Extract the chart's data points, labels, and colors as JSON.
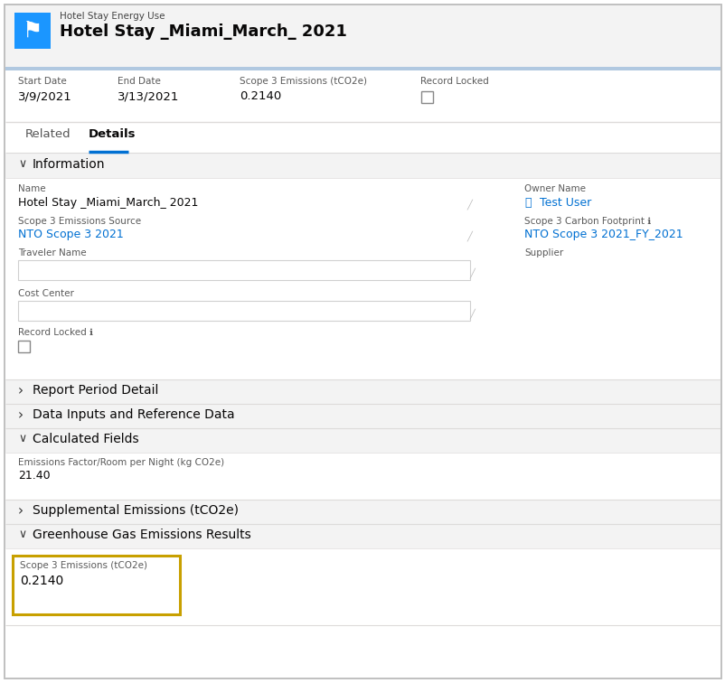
{
  "fig_width": 8.03,
  "fig_height": 7.56,
  "dpi": 100,
  "bg_color": "#f3f3f3",
  "white": "#ffffff",
  "header_bg": "#f3f3f3",
  "header_icon_bg": "#1b96ff",
  "header_type_text": "Hotel Stay Energy Use",
  "header_title_text": "Hotel Stay _Miami_March_ 2021",
  "header_type_color": "#444444",
  "header_title_color": "#080707",
  "field_label_color": "#5a5a5a",
  "field_value_color": "#080707",
  "field_link_color": "#0070d2",
  "start_date_label": "Start Date",
  "start_date_value": "3/9/2021",
  "end_date_label": "End Date",
  "end_date_value": "3/13/2021",
  "scope3_header_label": "Scope 3 Emissions (tCO2e)",
  "scope3_header_value": "0.2140",
  "record_locked_label": "Record Locked",
  "tab_related": "Related",
  "tab_details": "Details",
  "tab_underline_color": "#0070d2",
  "section_bg": "#f3f3f3",
  "section_text_color": "#080707",
  "info_section": "Information",
  "name_label": "Name",
  "name_value": "Hotel Stay _Miami_March_ 2021",
  "owner_label": "Owner Name",
  "owner_value": "Test User",
  "scope3_source_label": "Scope 3 Emissions Source",
  "scope3_source_value": "NTO Scope 3 2021",
  "scope3_footprint_label": "Scope 3 Carbon Footprint",
  "scope3_footprint_value": "NTO Scope 3 2021_FY_2021",
  "traveler_label": "Traveler Name",
  "supplier_label": "Supplier",
  "cost_center_label": "Cost Center",
  "record_locked_info_label": "Record Locked",
  "report_period_section": "Report Period Detail",
  "data_inputs_section": "Data Inputs and Reference Data",
  "calculated_section": "Calculated Fields",
  "ef_label": "Emissions Factor/Room per Night (kg CO2e)",
  "ef_value": "21.40",
  "supplemental_section": "Supplemental Emissions (tCO2e)",
  "gg_section": "Greenhouse Gas Emissions Results",
  "gg_scope3_label": "Scope 3 Emissions (tCO2e)",
  "gg_scope3_value": "0.2140",
  "highlight_box_color": "#c8a000",
  "divider_color": "#dddbda",
  "header_divider_color": "#b0c8e0",
  "outer_border_color": "#c0c0c0"
}
